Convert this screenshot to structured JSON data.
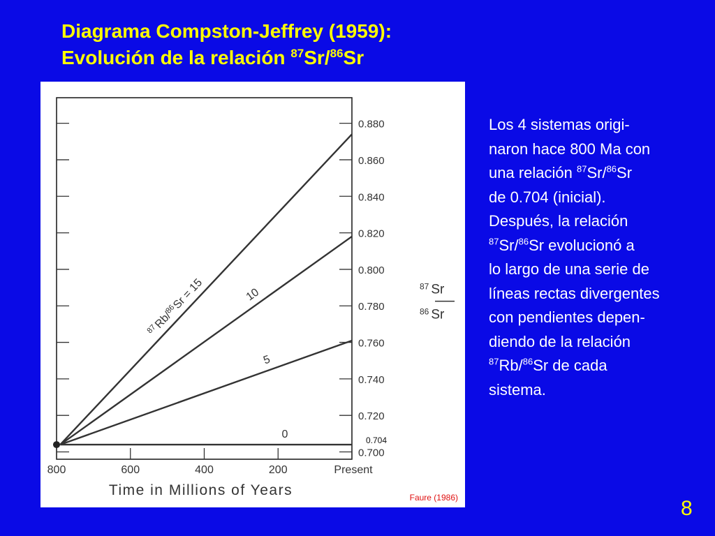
{
  "slide": {
    "title_line1": "Diagrama Compston-Jeffrey (1959):",
    "title_line2_prefix": "Evolución de la relación ",
    "sup_87": "87",
    "sup_86": "86",
    "sr": "Sr",
    "slash": "/",
    "rb": "Rb",
    "body": {
      "line1": "Los 4 sistemas origi-",
      "line2": "naron hace 800 Ma con",
      "line3_prefix": "una relación ",
      "line4": "de 0.704 (inicial).",
      "line5": "Después, la relación",
      "line6_suffix": " evolucionó  a",
      "line7": "lo largo de una serie de",
      "line8": "líneas rectas divergentes",
      "line9": "con pendientes depen-",
      "line10": "diendo de la relación",
      "line11_suffix": " de cada",
      "line12": "sistema."
    },
    "page_number": "8",
    "colors": {
      "background": "#0a0ae6",
      "title": "#ffff00",
      "text": "#ffffff",
      "citation": "#e01010"
    }
  },
  "chart_data": {
    "type": "line",
    "xlabel": "Time in Millions of Years",
    "x_ticks": [
      "800",
      "600",
      "400",
      "200",
      "Present"
    ],
    "x_tick_values": [
      800,
      600,
      400,
      200,
      0
    ],
    "xlim": [
      800,
      0
    ],
    "ylabel_top": "87 Sr",
    "ylabel_bottom": "86 Sr",
    "y_ticks": [
      "0.700",
      "0.720",
      "0.740",
      "0.760",
      "0.780",
      "0.800",
      "0.820",
      "0.840",
      "0.860",
      "0.880"
    ],
    "y_tick_values": [
      0.7,
      0.72,
      0.74,
      0.76,
      0.78,
      0.8,
      0.82,
      0.84,
      0.86,
      0.88
    ],
    "ylim": [
      0.696,
      0.894
    ],
    "initial_ratio_label": "0.704",
    "initial_point": {
      "x": 800,
      "y": 0.704
    },
    "series": [
      {
        "name": "0",
        "x": [
          790,
          0
        ],
        "y": [
          0.704,
          0.704
        ]
      },
      {
        "name": "5",
        "x": [
          790,
          0
        ],
        "y": [
          0.704,
          0.761
        ]
      },
      {
        "name": "10",
        "x": [
          790,
          0
        ],
        "y": [
          0.704,
          0.818
        ]
      },
      {
        "name": "15",
        "x": [
          790,
          0
        ],
        "y": [
          0.704,
          0.874
        ]
      }
    ],
    "series_label_prefix": "Rb/",
    "series_label_suffix": "Sr = 15",
    "citation": "Faure (1986)",
    "grid": false
  }
}
